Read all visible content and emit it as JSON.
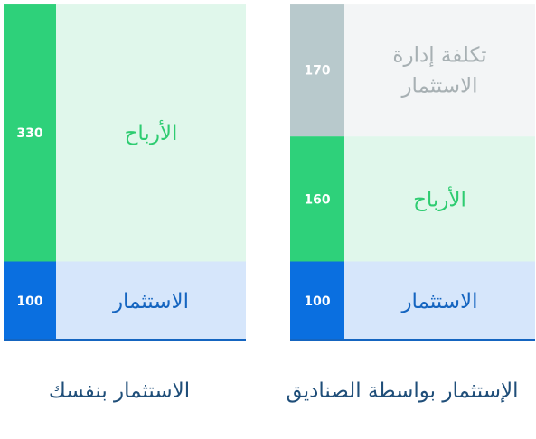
{
  "colors": {
    "strip_investment": "#0a6fe0",
    "strip_profit": "#2ed17a",
    "strip_cost": "#b8c9cc",
    "bg_investment": "#d6e6fb",
    "bg_profit": "#e0f7eb",
    "bg_cost": "#f3f5f6",
    "text_investment": "#1565c0",
    "text_profit": "#2ecc71",
    "text_cost": "#a7b0b3",
    "baseline": "#1565c0",
    "value_text": "#ffffff"
  },
  "chart_data": [
    {
      "type": "bar",
      "stacked": true,
      "caption": "الاستثمار بنفسك",
      "segments": [
        {
          "label": "الاستثمار",
          "value": 100,
          "kind": "investment"
        },
        {
          "label": "الأرباح",
          "value": 330,
          "kind": "profit"
        }
      ]
    },
    {
      "type": "bar",
      "stacked": true,
      "caption": "الإستثمار بواسطة الصناديق",
      "segments": [
        {
          "label": "الاستثمار",
          "value": 100,
          "kind": "investment"
        },
        {
          "label": "الأرباح",
          "value": 160,
          "kind": "profit"
        },
        {
          "label": "تكلفة إدارة الاستثمار",
          "value": 170,
          "kind": "cost"
        }
      ]
    }
  ]
}
